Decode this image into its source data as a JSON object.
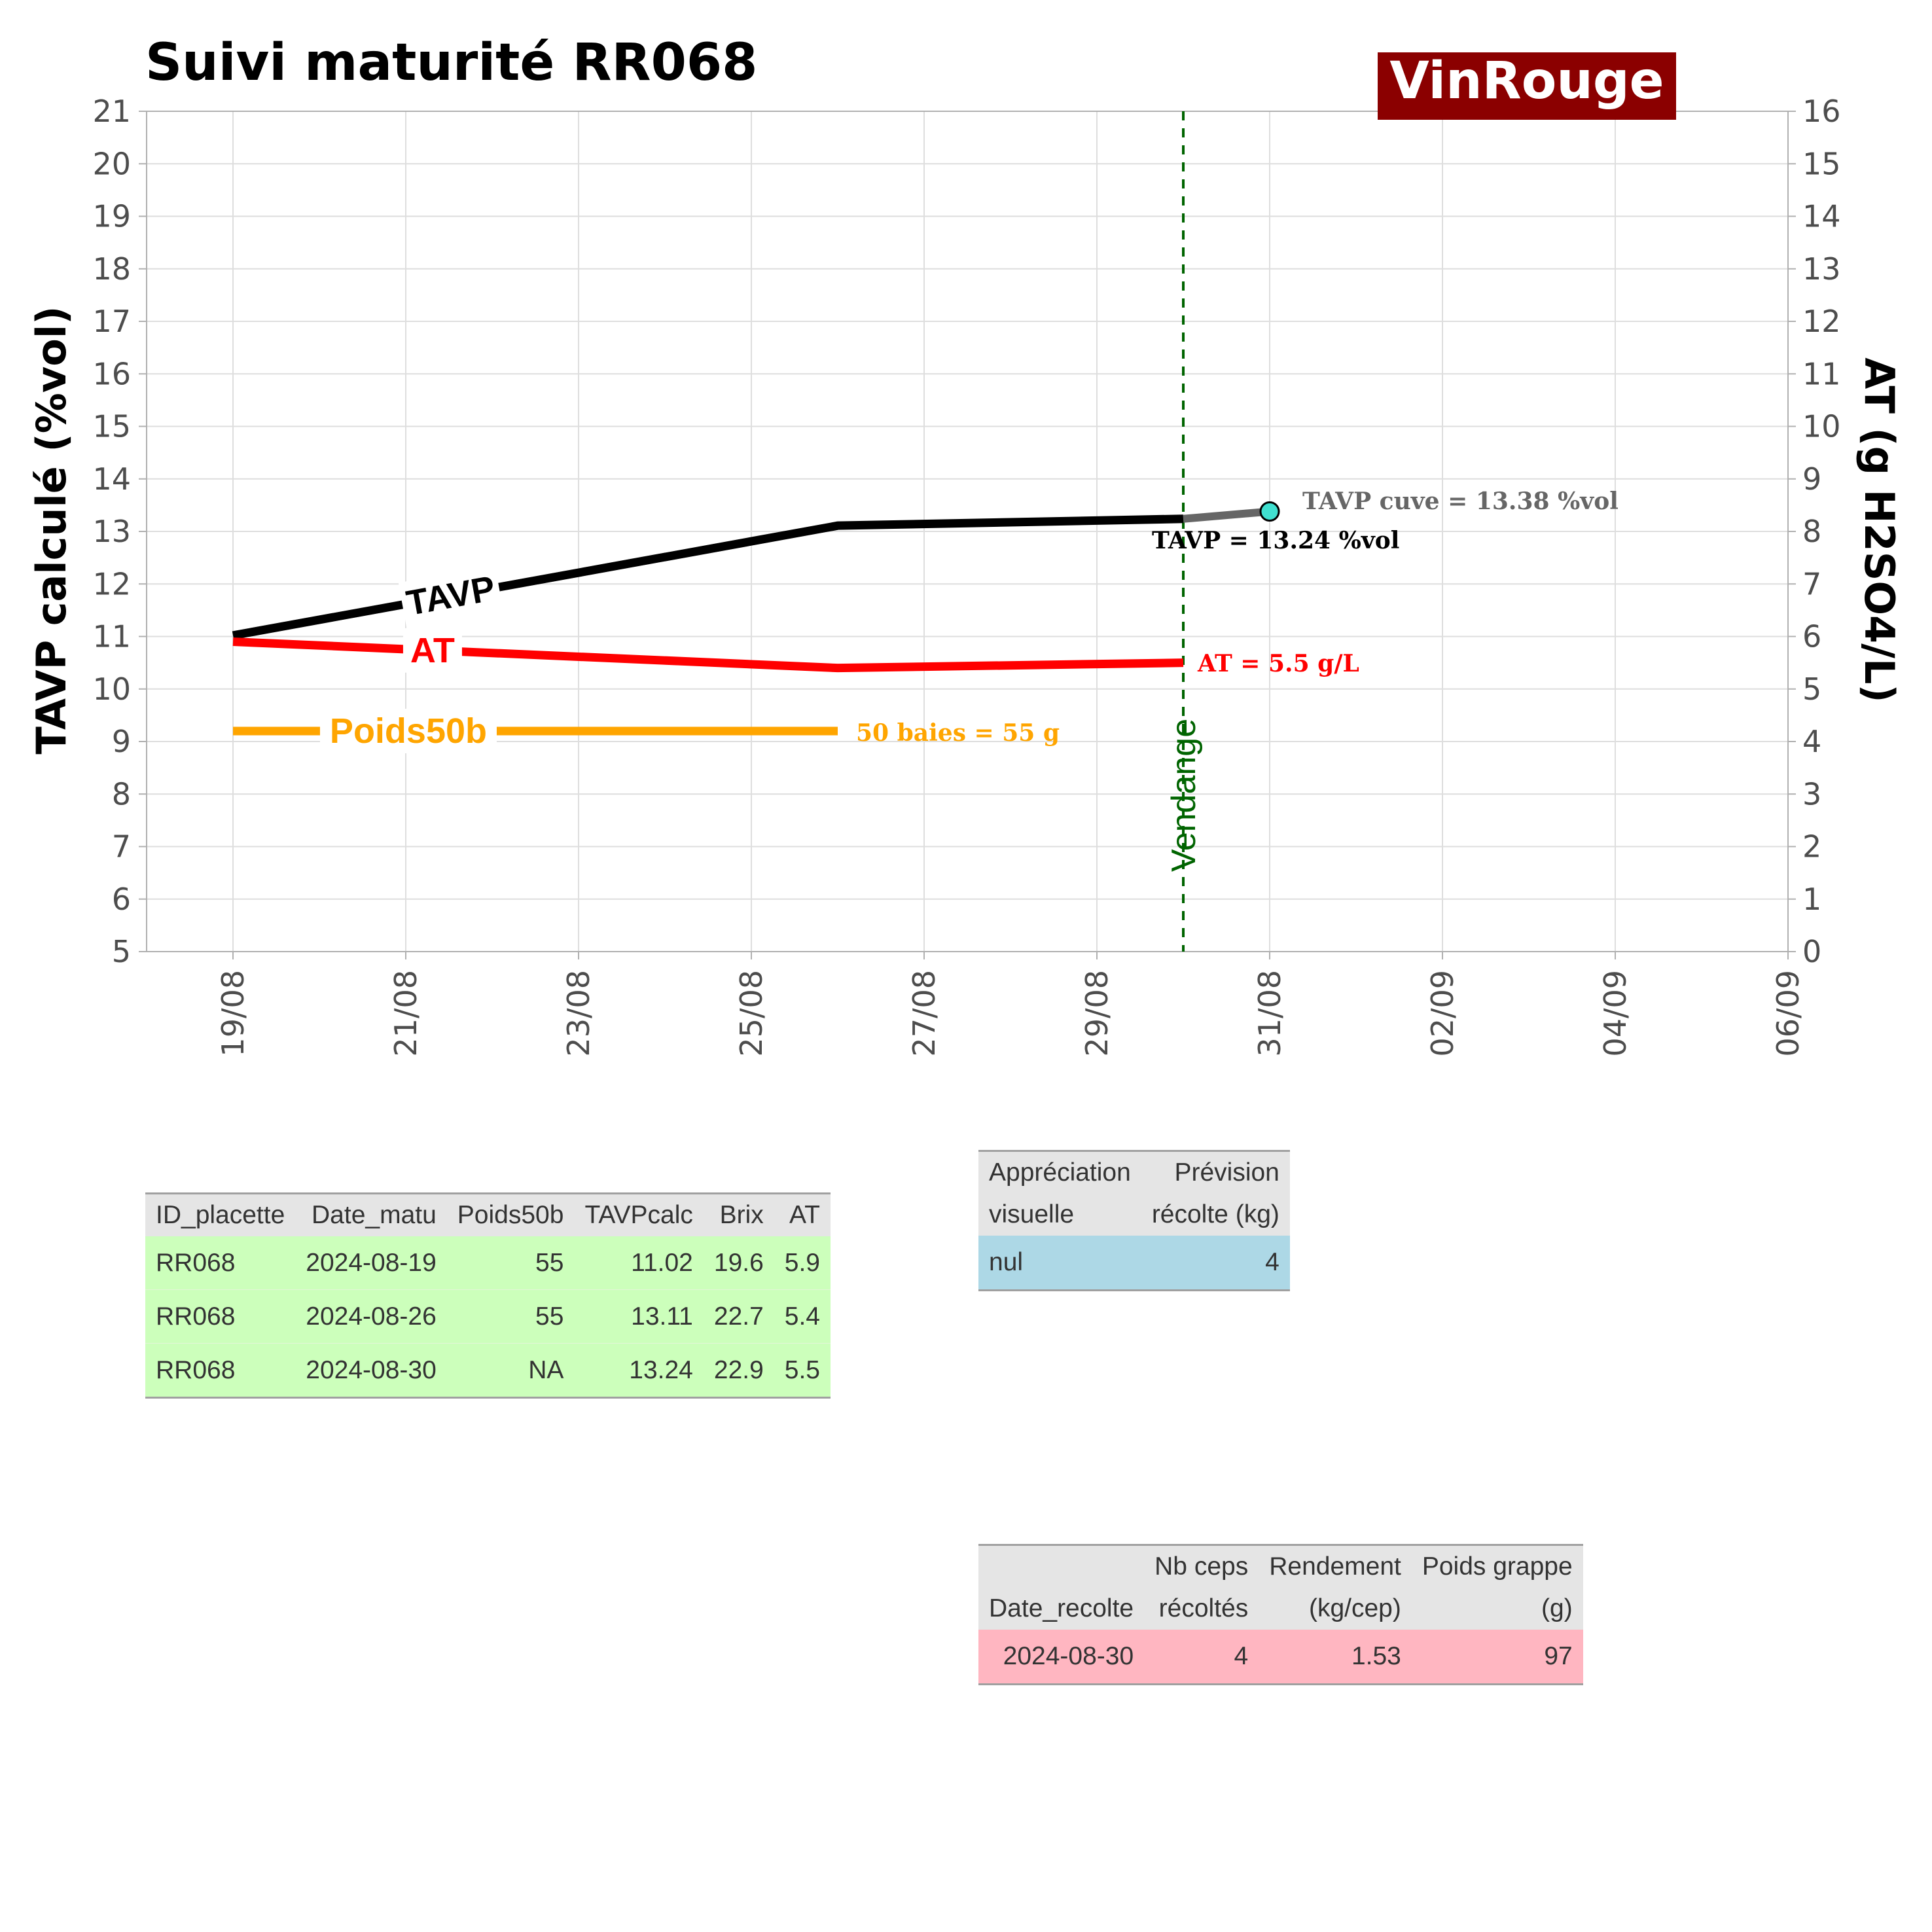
{
  "chart_data": {
    "type": "line",
    "title": "Suivi maturité  RR068",
    "brand_label": "VinRouge",
    "brand_color": "#8b0000",
    "ylabel_left": "TAVP calculé (%vol)",
    "ylabel_right": "AT (g H2SO4/L)",
    "ylim_left": [
      5,
      21
    ],
    "ylim_right": [
      0,
      16
    ],
    "yticks_left": [
      "5",
      "6",
      "7",
      "8",
      "9",
      "10",
      "11",
      "12",
      "13",
      "14",
      "15",
      "16",
      "17",
      "18",
      "19",
      "20",
      "21"
    ],
    "yticks_right": [
      "0",
      "1",
      "2",
      "3",
      "4",
      "5",
      "6",
      "7",
      "8",
      "9",
      "10",
      "11",
      "12",
      "13",
      "14",
      "15",
      "16"
    ],
    "xlim": [
      "2024-08-18",
      "2024-09-06"
    ],
    "xticks": [
      "19/08",
      "21/08",
      "23/08",
      "25/08",
      "27/08",
      "29/08",
      "31/08",
      "02/09",
      "04/09",
      "06/09"
    ],
    "grid": true,
    "series": [
      {
        "name": "TAVP",
        "axis": "left",
        "color": "#000000",
        "x": [
          "2024-08-19",
          "2024-08-26",
          "2024-08-30"
        ],
        "y": [
          11.02,
          13.11,
          13.24
        ]
      },
      {
        "name": "AT",
        "axis": "right",
        "color": "#ff0000",
        "x": [
          "2024-08-19",
          "2024-08-26",
          "2024-08-30"
        ],
        "y": [
          5.9,
          5.4,
          5.5
        ]
      },
      {
        "name": "Poids50b",
        "axis": "left",
        "color": "#ffa500",
        "x": [
          "2024-08-19",
          "2024-08-26"
        ],
        "y": [
          9.2,
          9.2
        ]
      }
    ],
    "tavp_cuve": {
      "x": [
        "2024-08-30",
        "2024-08-31"
      ],
      "y": [
        13.24,
        13.38
      ],
      "color": "#666666",
      "marker_color": "#40e0d0"
    },
    "vendange": {
      "x": "2024-08-30",
      "label": "Vendange",
      "color": "#006400"
    },
    "annotations": {
      "tavp_cuve": "TAVP cuve = 13.38 %vol",
      "tavp": "TAVP = 13.24 %vol",
      "at": "AT = 5.5 g/L",
      "poids": "50 baies = 55 g"
    }
  },
  "table_matu": {
    "headers": [
      "ID_placette",
      "Date_matu",
      "Poids50b",
      "TAVPcalc",
      "Brix",
      "AT"
    ],
    "rows": [
      [
        "RR068",
        "2024-08-19",
        "55",
        "11.02",
        "19.6",
        "5.9"
      ],
      [
        "RR068",
        "2024-08-26",
        "55",
        "13.11",
        "22.7",
        "5.4"
      ],
      [
        "RR068",
        "2024-08-30",
        "NA",
        "13.24",
        "22.9",
        "5.5"
      ]
    ],
    "row_color": "#ccffbb"
  },
  "table_prevision": {
    "headers_line1": [
      "Appréciation",
      "Prévision"
    ],
    "headers_line2": [
      "visuelle",
      "récolte (kg)"
    ],
    "rows": [
      [
        "nul",
        "4"
      ]
    ],
    "row_color": "#add8e6"
  },
  "table_recolte": {
    "headers_line1": [
      "",
      "Nb ceps",
      "Rendement",
      "Poids grappe"
    ],
    "headers_line2": [
      "Date_recolte",
      "récoltés",
      "(kg/cep)",
      "(g)"
    ],
    "rows": [
      [
        "2024-08-30",
        "4",
        "1.53",
        "97"
      ]
    ],
    "row_color": "#ffb6c1"
  }
}
